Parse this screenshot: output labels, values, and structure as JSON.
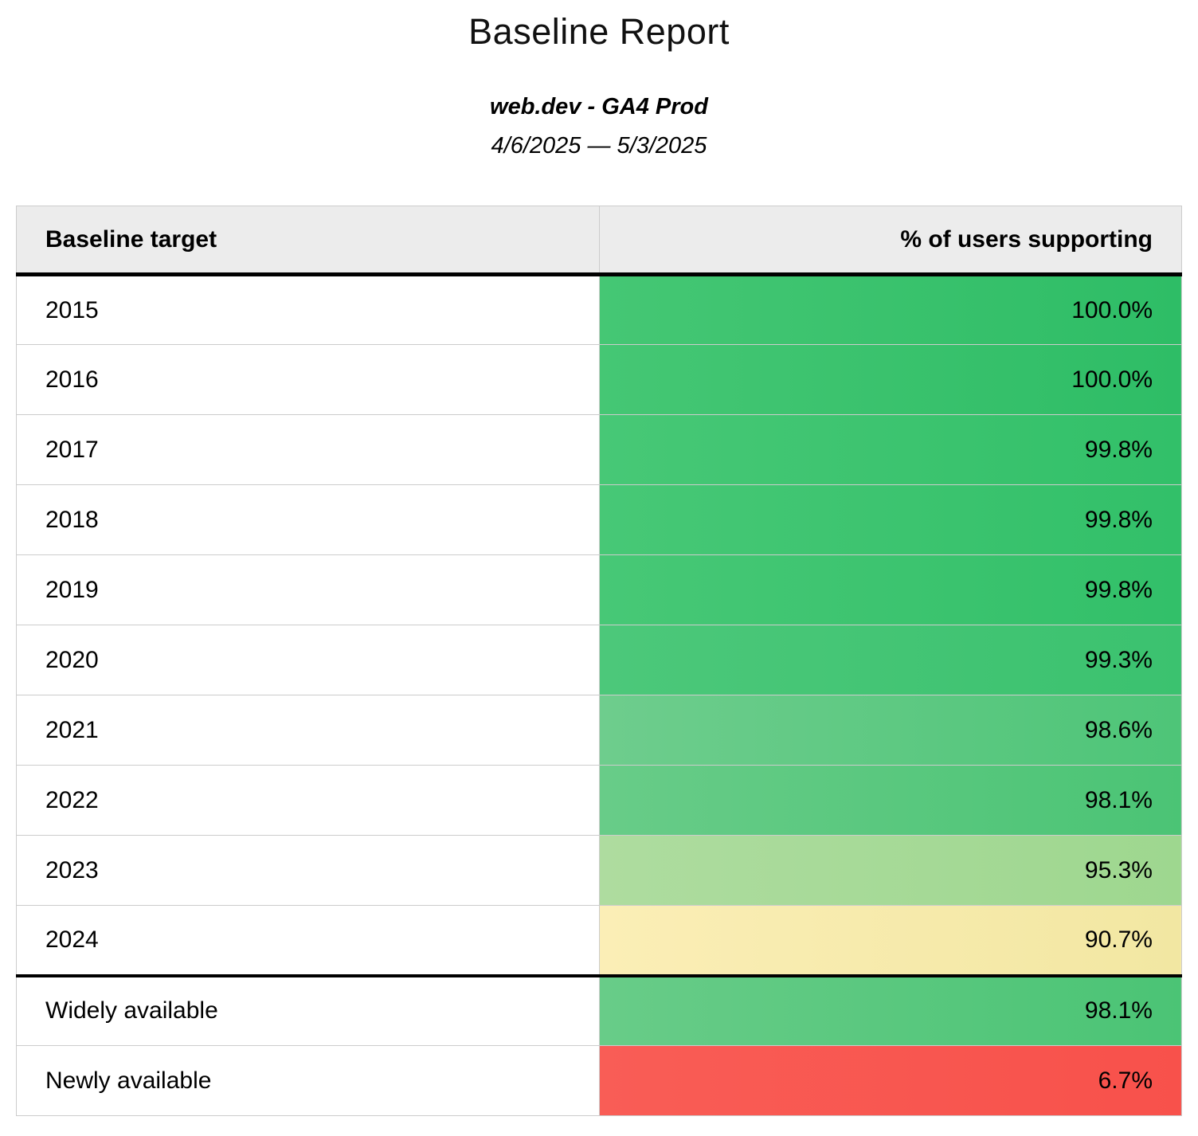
{
  "header": {
    "title": "Baseline Report",
    "subtitle": "web.dev - GA4 Prod",
    "date_range": "4/6/2025 — 5/3/2025"
  },
  "table": {
    "columns": {
      "target": "Baseline target",
      "support": "% of users supporting"
    },
    "rows": [
      {
        "label": "2015",
        "value": "100.0%",
        "color_left": "#45c774",
        "color_right": "#2ebd66"
      },
      {
        "label": "2016",
        "value": "100.0%",
        "color_left": "#45c774",
        "color_right": "#2ebd66"
      },
      {
        "label": "2017",
        "value": "99.8%",
        "color_left": "#47c876",
        "color_right": "#32c069"
      },
      {
        "label": "2018",
        "value": "99.8%",
        "color_left": "#47c876",
        "color_right": "#32c069"
      },
      {
        "label": "2019",
        "value": "99.8%",
        "color_left": "#47c876",
        "color_right": "#32c069"
      },
      {
        "label": "2020",
        "value": "99.3%",
        "color_left": "#4cc87a",
        "color_right": "#3bc26f"
      },
      {
        "label": "2021",
        "value": "98.6%",
        "color_left": "#6ecd8d",
        "color_right": "#4ec578"
      },
      {
        "label": "2022",
        "value": "98.1%",
        "color_left": "#68cc88",
        "color_right": "#4bc475"
      },
      {
        "label": "2023",
        "value": "95.3%",
        "color_left": "#aedc9f",
        "color_right": "#9ed78f"
      },
      {
        "label": "2024",
        "value": "90.7%",
        "color_left": "#fbeeb6",
        "color_right": "#f2e7a2"
      },
      {
        "label": "Widely available",
        "value": "98.1%",
        "color_left": "#68cc88",
        "color_right": "#4bc475"
      },
      {
        "label": "Newly available",
        "value": "6.7%",
        "color_left": "#f95d56",
        "color_right": "#f8514b"
      }
    ]
  },
  "colors": {
    "header_background": "#ececec",
    "grid_border": "#cccccc",
    "section_divider": "#000000",
    "good_green": "#2ebd66",
    "warn_yellow": "#f5e9ac",
    "bad_red": "#f8554f"
  },
  "chart_data": {
    "type": "table",
    "title": "Baseline Report",
    "subtitle": "web.dev - GA4 Prod",
    "date_range": "4/6/2025 — 5/3/2025",
    "columns": [
      "Baseline target",
      "% of users supporting"
    ],
    "categories": [
      "2015",
      "2016",
      "2017",
      "2018",
      "2019",
      "2020",
      "2021",
      "2022",
      "2023",
      "2024",
      "Widely available",
      "Newly available"
    ],
    "values_pct": [
      100.0,
      100.0,
      99.8,
      99.8,
      99.8,
      99.3,
      98.6,
      98.1,
      95.3,
      90.7,
      98.1,
      6.7
    ],
    "layout_hints": {
      "value_column_conditional_formatting": "green (high) through yellow (mid) to red (low)",
      "thick_divider_after_rows": [
        "header",
        "2024"
      ]
    }
  }
}
